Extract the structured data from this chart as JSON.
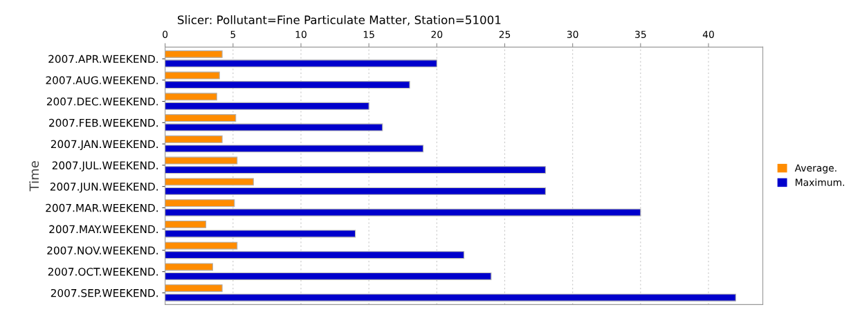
{
  "chart_data": {
    "type": "bar",
    "orientation": "horizontal",
    "title": "Slicer: Pollutant=Fine Particulate Matter, Station=51001",
    "ylabel": "Time",
    "categories": [
      "2007.APR.WEEKEND.",
      "2007.AUG.WEEKEND.",
      "2007.DEC.WEEKEND.",
      "2007.FEB.WEEKEND.",
      "2007.JAN.WEEKEND.",
      "2007.JUL.WEEKEND.",
      "2007.JUN.WEEKEND.",
      "2007.MAR.WEEKEND.",
      "2007.MAY.WEEKEND.",
      "2007.NOV.WEEKEND.",
      "2007.OCT.WEEKEND.",
      "2007.SEP.WEEKEND."
    ],
    "series": [
      {
        "name": "Average.",
        "color": "#ff8c00",
        "values": [
          4.2,
          4.0,
          3.8,
          5.2,
          4.2,
          5.3,
          6.5,
          5.1,
          3.0,
          5.3,
          3.5,
          4.2
        ]
      },
      {
        "name": "Maximum.",
        "color": "#0000cc",
        "values": [
          20,
          18,
          15,
          16,
          19,
          28,
          28,
          35,
          14,
          22,
          24,
          42
        ]
      }
    ],
    "xlim": [
      0,
      44
    ],
    "xticks": [
      0,
      5,
      10,
      15,
      20,
      25,
      30,
      35,
      40
    ],
    "grid": "x",
    "legend": "right"
  }
}
